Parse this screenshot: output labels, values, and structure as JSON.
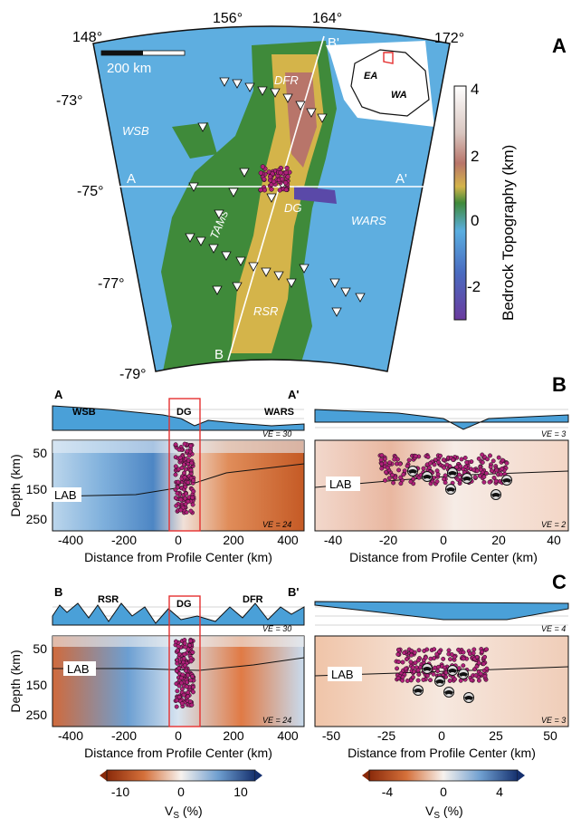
{
  "panel_letters": {
    "a": "A",
    "b": "B",
    "c": "C"
  },
  "map": {
    "lon_ticks": [
      "148°",
      "156°",
      "164°",
      "172°"
    ],
    "lat_ticks": [
      "-73°",
      "-75°",
      "-77°",
      "-79°"
    ],
    "scale_label": "200 km",
    "regions": {
      "wsb": "WSB",
      "dfr": "DFR",
      "tams": "TAMs",
      "dg": "DG",
      "wars": "WARS",
      "rsr": "RSR"
    },
    "profile_a_start": "A",
    "profile_a_end": "A'",
    "profile_b_start": "B",
    "profile_b_end": "B'",
    "inset_labels": {
      "ea": "EA",
      "wa": "WA"
    },
    "colorbar": {
      "title": "Bedrock Topography (km)",
      "ticks": [
        "4",
        "2",
        "0",
        "-2"
      ],
      "colors": {
        "high": "#ffffff",
        "mid_high": "#b8756a",
        "mid": "#d4b44a",
        "low_land": "#3f8a3a",
        "sea": "#5aaee0",
        "deep": "#6a3b9e"
      }
    }
  },
  "panel_b": {
    "left": {
      "profile_start": "A",
      "profile_end": "A'",
      "topo_labels": {
        "wsb": "WSB",
        "dg": "DG",
        "wars": "WARS"
      },
      "ve_top": "VE = 30",
      "ve_bottom": "VE = 24",
      "ylabel": "Depth (km)",
      "yticks": [
        "50",
        "150",
        "250"
      ],
      "lab": "LAB",
      "xlabel": "Distance from Profile Center (km)",
      "xticks": [
        "-400",
        "-200",
        "0",
        "200",
        "400"
      ]
    },
    "right": {
      "ve_top": "VE = 3",
      "ve_bottom": "VE = 2",
      "lab": "LAB",
      "xlabel": "Distance from Profile Center (km)",
      "xticks": [
        "-40",
        "-20",
        "0",
        "20",
        "40"
      ]
    }
  },
  "panel_c": {
    "left": {
      "profile_start": "B",
      "profile_end": "B'",
      "topo_labels": {
        "rsr": "RSR",
        "dg": "DG",
        "dfr": "DFR"
      },
      "ve_top": "VE = 30",
      "ve_bottom": "VE = 24",
      "ylabel": "Depth (km)",
      "yticks": [
        "50",
        "150",
        "250"
      ],
      "lab": "LAB",
      "xlabel": "Distance from Profile Center (km)",
      "xticks": [
        "-400",
        "-200",
        "0",
        "200",
        "400"
      ]
    },
    "right": {
      "ve_top": "VE = 4",
      "ve_bottom": "VE = 3",
      "lab": "LAB",
      "xlabel": "Distance from Profile Center (km)",
      "xticks": [
        "-50",
        "-25",
        "0",
        "25",
        "50"
      ]
    }
  },
  "colorbars_vs": {
    "left": {
      "ticks": [
        "-10",
        "0",
        "10"
      ],
      "label": "V",
      "label_sub": "S",
      "label_unit": " (%)"
    },
    "right": {
      "ticks": [
        "-4",
        "0",
        "4"
      ],
      "label": "V",
      "label_sub": "S",
      "label_unit": " (%)"
    }
  }
}
